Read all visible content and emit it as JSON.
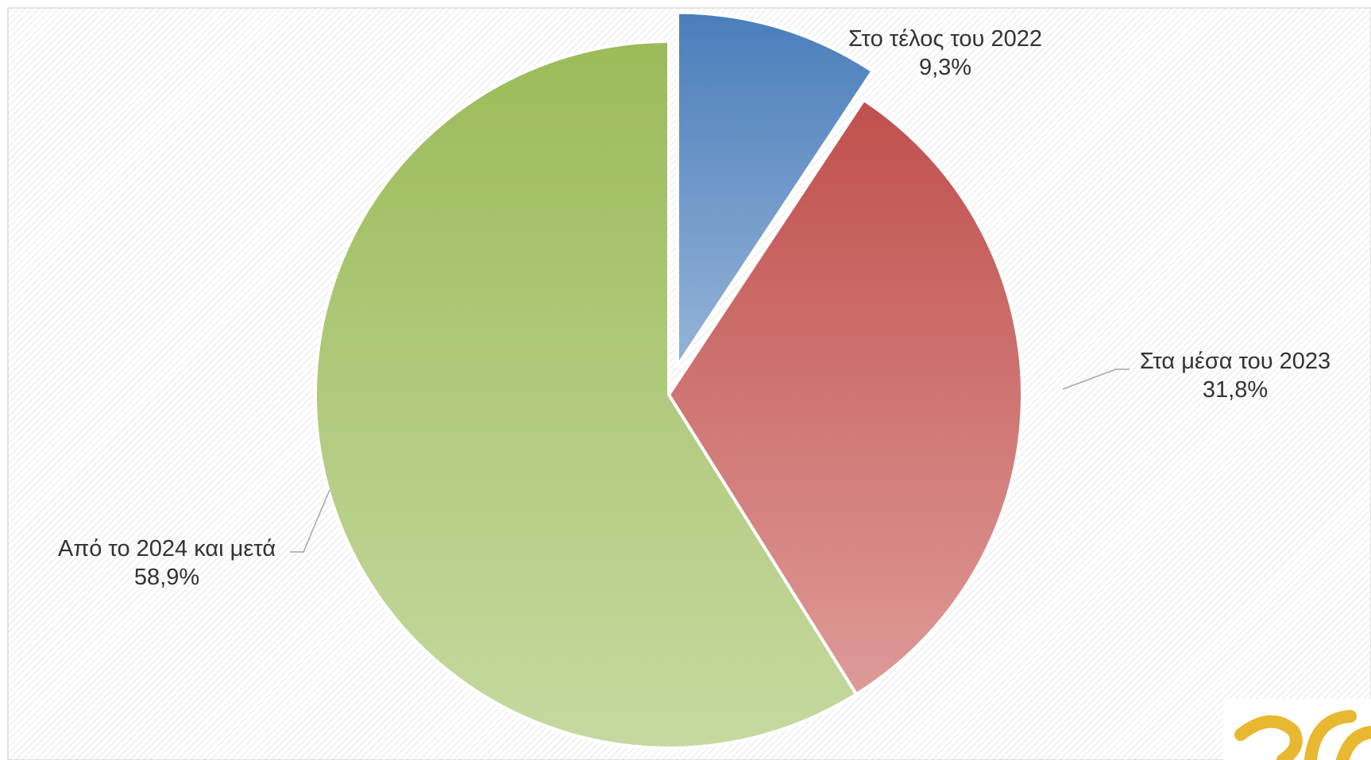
{
  "colors": {
    "Στο τέλος του 2022": {
      "dark": "#4a7ebb",
      "light": "#95b3d7"
    },
    "Στα μέσα του 2023": {
      "dark": "#c0504d",
      "light": "#de9a98"
    },
    "Από το 2024 και μετά": {
      "dark": "#9bbb59",
      "light": "#c6d9a0"
    }
  },
  "logo": {
    "brand_color": "#e8b830"
  },
  "chart_data": {
    "type": "pie",
    "title": "",
    "start_angle_deg": 0,
    "direction": "clockwise",
    "exploded": true,
    "slices": [
      {
        "label": "Στο τέλος του 2022",
        "value": 9.3,
        "value_label": "9,3%"
      },
      {
        "label": "Στα μέσα του 2023",
        "value": 31.8,
        "value_label": "31,8%"
      },
      {
        "label": "Από το 2024 και μετά",
        "value": 58.9,
        "value_label": "58,9%"
      }
    ],
    "legend": "none",
    "background": "diagonal-hatch"
  }
}
